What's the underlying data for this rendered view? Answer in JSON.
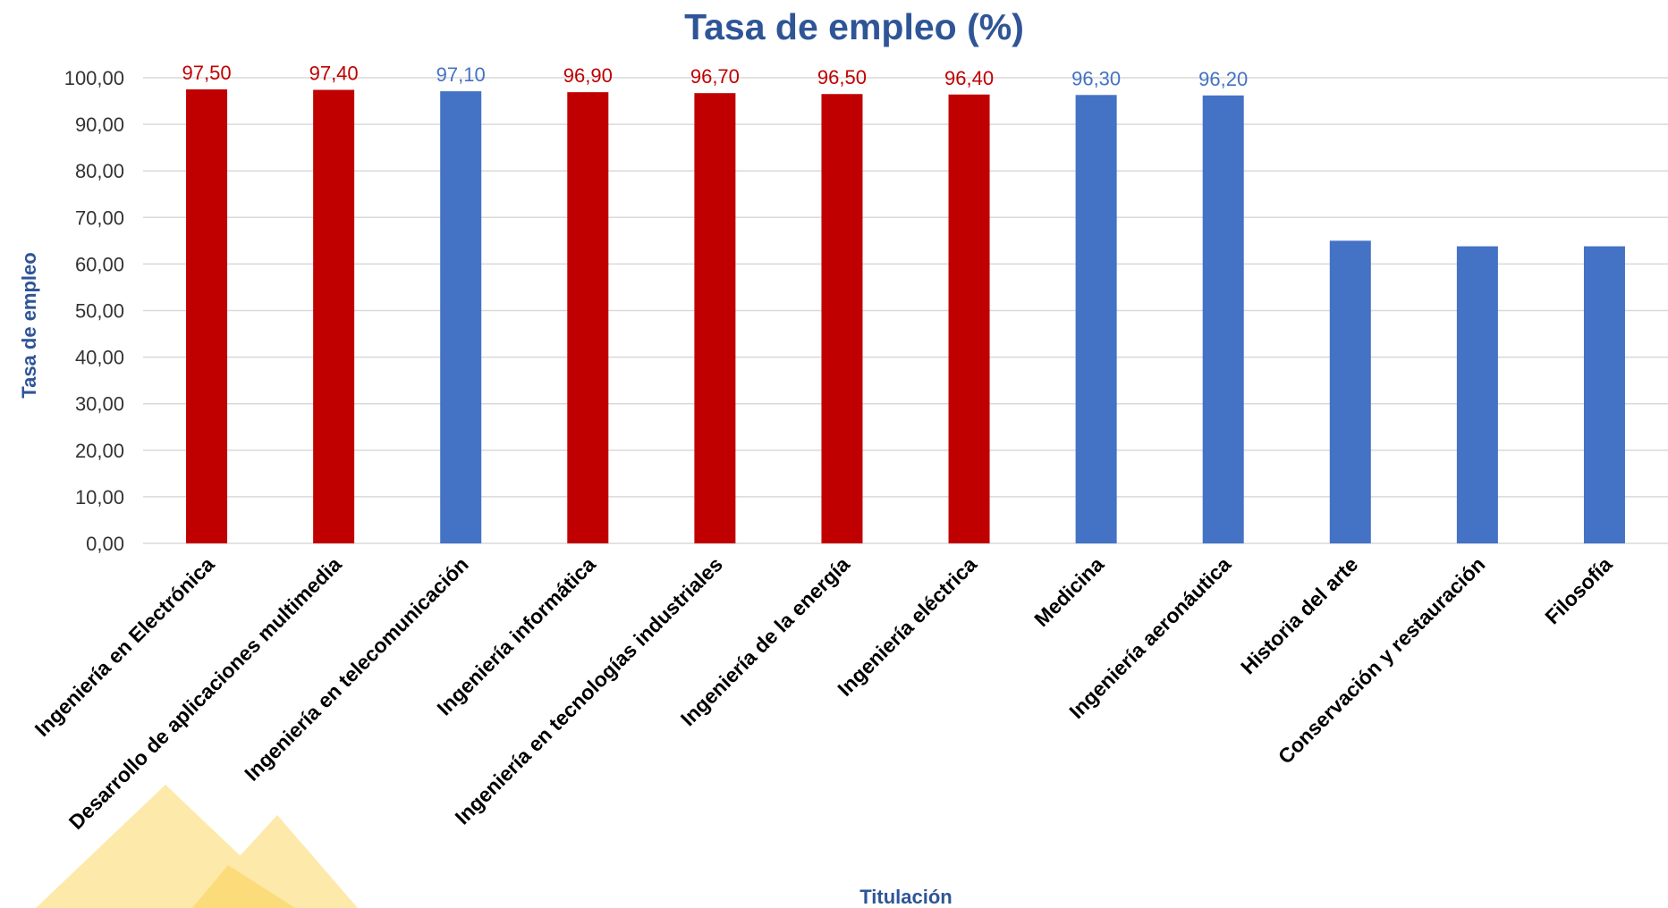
{
  "colors": {
    "title": "#2f5597",
    "highlight": "#c00000",
    "default": "#4472c4",
    "grid": "#d9d9d9",
    "decor_light": "#fde9a9",
    "decor_mid": "#fcdb7a"
  },
  "chart_data": {
    "type": "bar",
    "title": "Tasa de empleo (%)",
    "xlabel": "Titulación",
    "ylabel": "Tasa de empleo",
    "ylim": [
      0,
      100
    ],
    "y_ticks": [
      "0,00",
      "10,00",
      "20,00",
      "30,00",
      "40,00",
      "50,00",
      "60,00",
      "70,00",
      "80,00",
      "90,00",
      "100,00"
    ],
    "grid": true,
    "categories": [
      "Ingeniería en Electrónica",
      "Desarrollo de  aplicaciones multimedia",
      "Ingeniería en telecomunicación",
      "Ingeniería informática",
      "Ingeniería en tecnologías industriales",
      "Ingeniería de la energía",
      "Ingeniería eléctrica",
      "Medicina",
      "Ingeniería aeronáutica",
      "Historia del arte",
      "Conservación y restauración",
      "Filosofía"
    ],
    "values": [
      97.5,
      97.4,
      97.1,
      96.9,
      96.7,
      96.5,
      96.4,
      96.3,
      96.2,
      65.0,
      63.8,
      63.8
    ],
    "data_labels": [
      "97,50",
      "97,40",
      "97,10",
      "96,90",
      "96,70",
      "96,50",
      "96,40",
      "96,30",
      "96,20",
      null,
      null,
      null
    ],
    "highlighted": [
      true,
      true,
      false,
      true,
      true,
      true,
      true,
      false,
      false,
      false,
      false,
      false
    ]
  }
}
